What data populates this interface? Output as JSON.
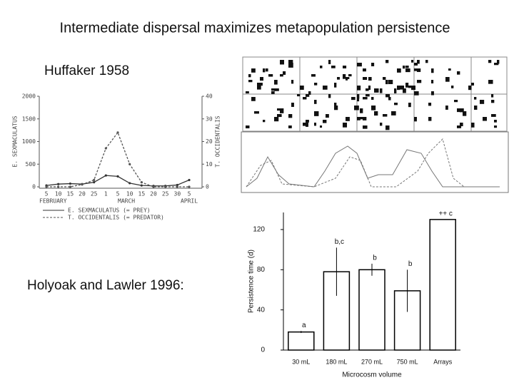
{
  "title": "Intermediate dispersal maximizes metapopulation persistence",
  "labels": [
    "Huffaker 1958",
    "Holyoak and Lawler 1996:"
  ],
  "chart_data": [
    {
      "type": "line",
      "ylabel": "E. SEXMACULATUS",
      "y2label": "T. OCCIDENTALIS",
      "categories": [
        "5",
        "10",
        "15",
        "20",
        "25",
        "1",
        "5",
        "10",
        "15",
        "20",
        "25",
        "30",
        "5"
      ],
      "month_labels": [
        "FEBRUARY",
        "MARCH",
        "APRIL"
      ],
      "series": [
        {
          "name": "E. SEXMACULATUS (= PREY)",
          "color": "#333333",
          "dash": false,
          "values": [
            30,
            60,
            70,
            60,
            100,
            250,
            230,
            80,
            30,
            20,
            20,
            40,
            150
          ]
        },
        {
          "name": "T. OCCIDENTALIS (= PREDATOR)",
          "color": "#555555",
          "dash": true,
          "axis": "y2",
          "values": [
            0,
            0,
            0,
            1,
            3,
            17,
            24,
            10,
            2,
            0,
            0,
            0,
            0
          ]
        }
      ],
      "ylim": [
        0,
        2000
      ],
      "yticks": [
        0,
        500,
        1000,
        1500,
        2000
      ],
      "y2lim": [
        0,
        40
      ],
      "y2ticks": [
        0,
        10,
        20,
        30,
        40
      ]
    },
    {
      "type": "bar",
      "ylabel": "Persistence time (d)",
      "xlabel": "Microcosm volume",
      "categories": [
        "30 mL",
        "180 mL",
        "270 mL",
        "750 mL",
        "Arrays"
      ],
      "values": [
        18,
        78,
        80,
        59,
        130
      ],
      "errors": [
        1,
        24,
        6,
        21,
        0
      ],
      "annotations": [
        "a",
        "b,c",
        "b",
        "b",
        "++  c"
      ],
      "color": "#ffffff",
      "ylim": [
        0,
        137
      ],
      "yticks": [
        0,
        40,
        80,
        120
      ]
    }
  ]
}
